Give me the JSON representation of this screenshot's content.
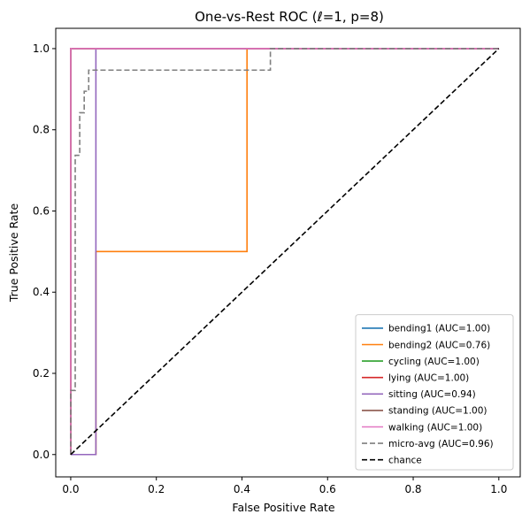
{
  "chart_data": {
    "type": "line",
    "title": "One-vs-Rest ROC (ℓ=1, p=8)",
    "xlabel": "False Positive Rate",
    "ylabel": "True Positive Rate",
    "xlim": [
      -0.035,
      1.05
    ],
    "ylim": [
      -0.055,
      1.05
    ],
    "xticks": [
      "0.0",
      "0.2",
      "0.4",
      "0.6",
      "0.8",
      "1.0"
    ],
    "yticks": [
      "0.0",
      "0.2",
      "0.4",
      "0.6",
      "0.8",
      "1.0"
    ],
    "legend_position": "lower-right",
    "series": [
      {
        "name": "bending1 (AUC=1.00)",
        "color": "#1f77b4",
        "dash": "solid",
        "x": [
          0,
          0,
          1
        ],
        "y": [
          0,
          1,
          1
        ]
      },
      {
        "name": "bending2 (AUC=0.76)",
        "color": "#ff7f0e",
        "dash": "solid",
        "x": [
          0,
          0.0588,
          0.0588,
          0.4118,
          0.4118,
          1
        ],
        "y": [
          0,
          0,
          0.5,
          0.5,
          1,
          1
        ]
      },
      {
        "name": "cycling (AUC=1.00)",
        "color": "#2ca02c",
        "dash": "solid",
        "x": [
          0,
          0,
          1
        ],
        "y": [
          0,
          1,
          1
        ]
      },
      {
        "name": "lying (AUC=1.00)",
        "color": "#d62728",
        "dash": "solid",
        "x": [
          0,
          0,
          1
        ],
        "y": [
          0,
          1,
          1
        ]
      },
      {
        "name": "sitting (AUC=0.94)",
        "color": "#9467bd",
        "dash": "solid",
        "x": [
          0,
          0.0588,
          0.0588,
          1
        ],
        "y": [
          0,
          0,
          1,
          1
        ]
      },
      {
        "name": "standing (AUC=1.00)",
        "color": "#8c564b",
        "dash": "solid",
        "x": [
          0,
          0,
          1
        ],
        "y": [
          0,
          1,
          1
        ]
      },
      {
        "name": "walking (AUC=1.00)",
        "color": "#e377c2",
        "dash": "solid",
        "x": [
          0,
          0,
          1
        ],
        "y": [
          0,
          1,
          1
        ]
      },
      {
        "name": "micro-avg (AUC=0.96)",
        "color": "#7f7f7f",
        "dash": "dashed",
        "x": [
          0,
          0,
          0.0105,
          0.0105,
          0.021,
          0.021,
          0.0315,
          0.0315,
          0.042,
          0.042,
          0.0525,
          0.0525,
          0.4664,
          0.4664,
          1
        ],
        "y": [
          0,
          0.158,
          0.158,
          0.737,
          0.737,
          0.842,
          0.842,
          0.895,
          0.895,
          0.947,
          0.947,
          0.947,
          0.947,
          1,
          1
        ]
      },
      {
        "name": "chance",
        "color": "#000000",
        "dash": "dashed",
        "x": [
          0,
          1
        ],
        "y": [
          0,
          1
        ]
      }
    ]
  }
}
